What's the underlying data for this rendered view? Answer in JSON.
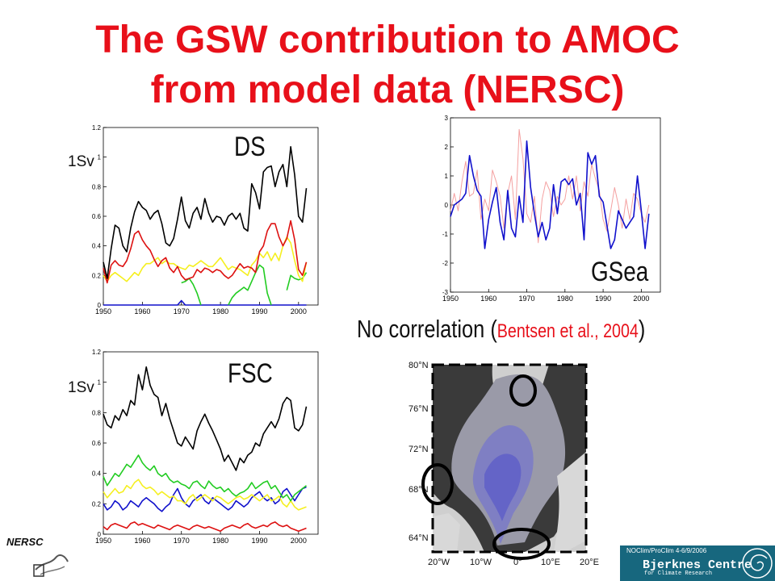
{
  "title_line1": "The GSW contribution to AMOC",
  "title_line2": "from model data (NERSC)",
  "annotation": {
    "no_correlation": "No correlation",
    "citation_open": "(",
    "citation": "Bentsen et al., 2004",
    "citation_close": ")"
  },
  "footer": {
    "conference": "NOClim/ProClim 4-6/9/2006",
    "org_name": "Bjerknes Centre",
    "org_sub": "for Climate Research"
  },
  "logo_text": "NERSC",
  "colors": {
    "title": "#e8101a",
    "black": "#000000",
    "red": "#dd1111",
    "yellow": "#f5ef20",
    "green": "#22cc22",
    "blue": "#1111cc",
    "pink": "#f4a0a0"
  },
  "chart_data": [
    {
      "type": "line",
      "panel_label": "DS",
      "unit_label": "1Sv",
      "x": [
        1950,
        1951,
        1952,
        1953,
        1954,
        1955,
        1956,
        1957,
        1958,
        1959,
        1960,
        1961,
        1962,
        1963,
        1964,
        1965,
        1966,
        1967,
        1968,
        1969,
        1970,
        1971,
        1972,
        1973,
        1974,
        1975,
        1976,
        1977,
        1978,
        1979,
        1980,
        1981,
        1982,
        1983,
        1984,
        1985,
        1986,
        1987,
        1988,
        1989,
        1990,
        1991,
        1992,
        1993,
        1994,
        1995,
        1996,
        1997,
        1998,
        1999,
        2000,
        2001,
        2002
      ],
      "xlim": [
        1950,
        2005
      ],
      "ylim": [
        0,
        1.2
      ],
      "xticks": [
        1950,
        1960,
        1970,
        1980,
        1990,
        2000
      ],
      "yticks": [
        "0",
        "0.2",
        "0.4",
        "0.6",
        "0.8",
        "1",
        "1.2"
      ],
      "series": [
        {
          "color": "#000000",
          "values": [
            0.29,
            0.18,
            0.38,
            0.54,
            0.52,
            0.4,
            0.36,
            0.52,
            0.63,
            0.7,
            0.66,
            0.64,
            0.58,
            0.62,
            0.64,
            0.55,
            0.42,
            0.4,
            0.45,
            0.58,
            0.73,
            0.57,
            0.52,
            0.62,
            0.66,
            0.58,
            0.72,
            0.62,
            0.56,
            0.6,
            0.59,
            0.54,
            0.6,
            0.62,
            0.58,
            0.62,
            0.52,
            0.5,
            0.82,
            0.76,
            0.65,
            0.9,
            0.93,
            0.94,
            0.8,
            0.9,
            0.95,
            0.8,
            1.07,
            0.88,
            0.6,
            0.56,
            0.79
          ]
        },
        {
          "color": "#dd1111",
          "values": [
            0.25,
            0.15,
            0.27,
            0.3,
            0.27,
            0.26,
            0.3,
            0.38,
            0.48,
            0.5,
            0.44,
            0.4,
            0.37,
            0.31,
            0.26,
            0.3,
            0.32,
            0.25,
            0.22,
            0.26,
            0.2,
            0.17,
            0.18,
            0.19,
            0.24,
            0.22,
            0.25,
            0.24,
            0.22,
            0.24,
            0.23,
            0.2,
            0.18,
            0.2,
            0.24,
            0.28,
            0.25,
            0.26,
            0.25,
            0.22,
            0.36,
            0.4,
            0.5,
            0.55,
            0.55,
            0.46,
            0.4,
            0.45,
            0.57,
            0.44,
            0.24,
            0.2,
            0.29
          ]
        },
        {
          "color": "#f5ef20",
          "values": [
            0.2,
            0.16,
            0.2,
            0.22,
            0.2,
            0.18,
            0.16,
            0.19,
            0.22,
            0.2,
            0.25,
            0.28,
            0.28,
            0.3,
            0.32,
            0.28,
            0.3,
            0.28,
            0.28,
            0.26,
            0.25,
            0.24,
            0.27,
            0.26,
            0.28,
            0.3,
            0.28,
            0.26,
            0.26,
            0.29,
            0.32,
            0.28,
            0.24,
            0.26,
            0.25,
            0.24,
            0.22,
            0.2,
            0.27,
            0.3,
            0.35,
            0.32,
            0.36,
            0.3,
            0.35,
            0.3,
            0.4,
            0.46,
            0.42,
            0.3,
            0.2,
            0.16,
            0.29
          ]
        },
        {
          "color": "#22cc22",
          "values": [
            null,
            null,
            null,
            null,
            null,
            null,
            null,
            null,
            null,
            null,
            null,
            null,
            null,
            null,
            null,
            null,
            null,
            null,
            null,
            null,
            0.15,
            0.16,
            0.18,
            0.14,
            0.08,
            0.0,
            null,
            null,
            null,
            null,
            null,
            null,
            0.0,
            0.05,
            0.08,
            0.1,
            0.12,
            0.1,
            0.16,
            0.22,
            0.27,
            0.25,
            0.08,
            0.0,
            null,
            null,
            null,
            0.1,
            0.2,
            0.18,
            0.17,
            0.18,
            0.22
          ]
        },
        {
          "color": "#1111cc",
          "values": [
            0.0,
            0.0,
            0.0,
            0.0,
            0.0,
            0.0,
            0.0,
            0.0,
            0.0,
            0.0,
            0.0,
            0.0,
            0.0,
            0.0,
            0.0,
            0.0,
            0.0,
            0.0,
            0.0,
            0.0,
            0.03,
            0.0,
            0.0,
            0.0,
            0.0,
            0.0,
            0.0,
            0.0,
            0.0,
            0.0,
            0.0,
            0.0,
            0.0,
            0.0,
            0.0,
            0.0,
            0.0,
            0.0,
            0.0,
            0.0,
            0.0,
            0.0,
            0.0,
            0.0,
            0.0,
            0.0,
            0.0,
            0.0,
            0.0,
            0.0,
            0.0,
            0.0,
            0.0
          ]
        }
      ]
    },
    {
      "type": "line",
      "panel_label": "FSC",
      "unit_label": "1Sv",
      "x": [
        1950,
        1951,
        1952,
        1953,
        1954,
        1955,
        1956,
        1957,
        1958,
        1959,
        1960,
        1961,
        1962,
        1963,
        1964,
        1965,
        1966,
        1967,
        1968,
        1969,
        1970,
        1971,
        1972,
        1973,
        1974,
        1975,
        1976,
        1977,
        1978,
        1979,
        1980,
        1981,
        1982,
        1983,
        1984,
        1985,
        1986,
        1987,
        1988,
        1989,
        1990,
        1991,
        1992,
        1993,
        1994,
        1995,
        1996,
        1997,
        1998,
        1999,
        2000,
        2001,
        2002
      ],
      "xlim": [
        1950,
        2005
      ],
      "ylim": [
        0,
        1.2
      ],
      "xticks": [
        1950,
        1960,
        1970,
        1980,
        1990,
        2000
      ],
      "yticks": [
        "0",
        "0.2",
        "0.4",
        "0.6",
        "0.8",
        "1",
        "1.2"
      ],
      "series": [
        {
          "color": "#000000",
          "values": [
            0.79,
            0.72,
            0.7,
            0.78,
            0.75,
            0.82,
            0.78,
            0.88,
            0.85,
            1.05,
            0.95,
            1.1,
            0.98,
            0.92,
            0.9,
            0.78,
            0.86,
            0.76,
            0.68,
            0.6,
            0.58,
            0.64,
            0.6,
            0.56,
            0.68,
            0.74,
            0.79,
            0.73,
            0.68,
            0.62,
            0.56,
            0.48,
            0.52,
            0.47,
            0.42,
            0.5,
            0.47,
            0.52,
            0.54,
            0.6,
            0.58,
            0.66,
            0.7,
            0.74,
            0.7,
            0.76,
            0.86,
            0.9,
            0.88,
            0.7,
            0.68,
            0.72,
            0.84
          ]
        },
        {
          "color": "#22cc22",
          "values": [
            0.38,
            0.32,
            0.36,
            0.4,
            0.38,
            0.42,
            0.46,
            0.44,
            0.48,
            0.52,
            0.47,
            0.44,
            0.42,
            0.45,
            0.4,
            0.38,
            0.4,
            0.36,
            0.34,
            0.35,
            0.33,
            0.32,
            0.3,
            0.34,
            0.35,
            0.32,
            0.3,
            0.35,
            0.32,
            0.3,
            0.31,
            0.28,
            0.3,
            0.27,
            0.25,
            0.27,
            0.28,
            0.3,
            0.34,
            0.3,
            0.32,
            0.34,
            0.35,
            0.3,
            0.32,
            0.28,
            0.24,
            0.26,
            0.22,
            0.26,
            0.28,
            0.3,
            0.32
          ]
        },
        {
          "color": "#f5ef20",
          "values": [
            0.28,
            0.24,
            0.27,
            0.3,
            0.27,
            0.28,
            0.32,
            0.3,
            0.34,
            0.36,
            0.32,
            0.3,
            0.31,
            0.29,
            0.26,
            0.28,
            0.26,
            0.24,
            0.25,
            0.22,
            0.22,
            0.2,
            0.24,
            0.26,
            0.22,
            0.24,
            0.26,
            0.24,
            0.22,
            0.25,
            0.24,
            0.22,
            0.2,
            0.22,
            0.24,
            0.25,
            0.23,
            0.24,
            0.26,
            0.24,
            0.22,
            0.24,
            0.26,
            0.22,
            0.23,
            0.25,
            0.2,
            0.18,
            0.22,
            0.18,
            0.16,
            0.17,
            0.18
          ]
        },
        {
          "color": "#1111cc",
          "values": [
            0.2,
            0.16,
            0.18,
            0.22,
            0.2,
            0.16,
            0.18,
            0.22,
            0.2,
            0.18,
            0.22,
            0.24,
            0.22,
            0.2,
            0.17,
            0.15,
            0.18,
            0.2,
            0.26,
            0.3,
            0.24,
            0.2,
            0.18,
            0.22,
            0.24,
            0.26,
            0.22,
            0.2,
            0.24,
            0.22,
            0.2,
            0.18,
            0.16,
            0.18,
            0.22,
            0.2,
            0.18,
            0.2,
            0.24,
            0.26,
            0.28,
            0.24,
            0.22,
            0.24,
            0.2,
            0.22,
            0.28,
            0.3,
            0.26,
            0.22,
            0.26,
            0.3,
            0.31
          ]
        },
        {
          "color": "#dd1111",
          "values": [
            0.05,
            0.03,
            0.06,
            0.07,
            0.06,
            0.05,
            0.04,
            0.07,
            0.08,
            0.06,
            0.07,
            0.06,
            0.05,
            0.04,
            0.06,
            0.05,
            0.04,
            0.03,
            0.05,
            0.06,
            0.05,
            0.04,
            0.03,
            0.05,
            0.06,
            0.05,
            0.04,
            0.05,
            0.04,
            0.03,
            0.02,
            0.04,
            0.05,
            0.06,
            0.05,
            0.04,
            0.06,
            0.07,
            0.05,
            0.04,
            0.05,
            0.06,
            0.05,
            0.07,
            0.08,
            0.06,
            0.05,
            0.06,
            0.04,
            0.03,
            0.02,
            0.03,
            0.04
          ]
        }
      ]
    },
    {
      "type": "line",
      "panel_label": "GSea",
      "x": [
        1950,
        1951,
        1952,
        1953,
        1954,
        1955,
        1956,
        1957,
        1958,
        1959,
        1960,
        1961,
        1962,
        1963,
        1964,
        1965,
        1966,
        1967,
        1968,
        1969,
        1970,
        1971,
        1972,
        1973,
        1974,
        1975,
        1976,
        1977,
        1978,
        1979,
        1980,
        1981,
        1982,
        1983,
        1984,
        1985,
        1986,
        1987,
        1988,
        1989,
        1990,
        1991,
        1992,
        1993,
        1994,
        1995,
        1996,
        1997,
        1998,
        1999,
        2000,
        2001,
        2002
      ],
      "xlim": [
        1950,
        2005
      ],
      "ylim": [
        -3,
        3
      ],
      "xticks": [
        1950,
        1960,
        1970,
        1980,
        1990,
        2000
      ],
      "yticks": [
        "-3",
        "-2",
        "-1",
        "0",
        "1",
        "2",
        "3"
      ],
      "series": [
        {
          "color": "#1111cc",
          "values": [
            -0.4,
            0.0,
            0.1,
            0.2,
            0.4,
            1.7,
            1.0,
            0.5,
            0.3,
            -1.5,
            -0.5,
            0.1,
            0.6,
            -0.6,
            -1.2,
            0.5,
            -0.8,
            -1.1,
            0.3,
            -0.6,
            2.2,
            0.6,
            -0.3,
            -1.1,
            -0.6,
            -1.2,
            -0.8,
            0.7,
            -0.3,
            0.8,
            0.9,
            0.7,
            0.9,
            0.0,
            0.4,
            -1.2,
            1.8,
            1.4,
            1.7,
            0.3,
            0.1,
            -0.7,
            -1.5,
            -1.2,
            -0.2,
            -0.5,
            -0.8,
            -0.6,
            -0.4,
            1.0,
            -0.2,
            -1.5,
            -0.3
          ]
        },
        {
          "color": "#f4a0a0",
          "values": [
            -0.2,
            0.4,
            -0.2,
            0.8,
            1.5,
            0.3,
            0.4,
            1.2,
            -0.5,
            0.2,
            -0.2,
            1.2,
            0.8,
            0.3,
            -0.8,
            0.4,
            1.0,
            -0.5,
            2.6,
            1.6,
            -0.3,
            -0.6,
            0.3,
            -1.3,
            0.2,
            0.8,
            0.5,
            -0.4,
            0.3,
            0.0,
            0.2,
            1.0,
            0.2,
            1.0,
            -0.2,
            0.8,
            0.3,
            1.4,
            0.9,
            0.5,
            -0.5,
            -0.9,
            -0.2,
            0.6,
            0.0,
            -0.8,
            0.2,
            -0.5,
            0.4,
            0.2,
            -0.3,
            -0.6,
            0.0
          ]
        }
      ]
    }
  ],
  "map": {
    "lat_labels": [
      "80°N",
      "76°N",
      "72°N",
      "68°N",
      "64°N"
    ],
    "lon_labels": [
      "20°W",
      "10°W",
      "0°",
      "10°E",
      "20°E"
    ]
  }
}
